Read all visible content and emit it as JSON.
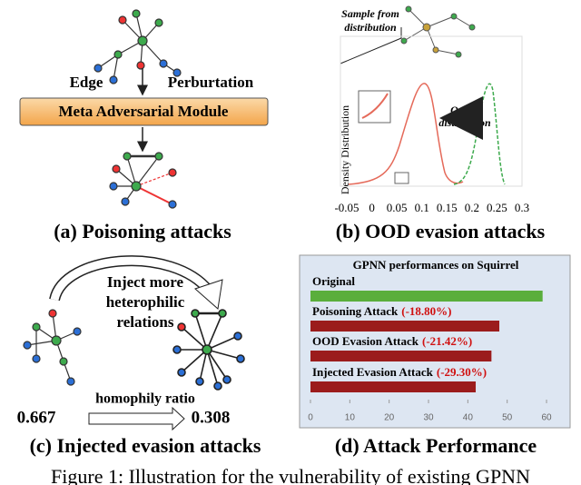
{
  "figure": {
    "a": {
      "edge_label": "Edge",
      "perturbation_label": "Perburtation",
      "module": "Meta Adversarial Module",
      "caption": "(a) Poisoning attacks"
    },
    "b": {
      "sample_note": [
        "Sample from",
        "distribution"
      ],
      "ood_note": [
        "Out of",
        "distribution"
      ],
      "y_label": "Density Distribution",
      "xlim": [
        -0.05,
        0.3
      ],
      "xticks": [
        -0.05,
        0,
        0.05,
        0.1,
        0.15,
        0.2,
        0.25,
        0.3
      ],
      "caption": "(b) OOD evasion attacks"
    },
    "c": {
      "note": [
        "Inject more",
        "heterophilic",
        "relations"
      ],
      "ratio_label": "homophily ratio",
      "ratio_before": 0.667,
      "ratio_after": 0.308,
      "caption": "(c) Injected evasion attacks"
    },
    "d": {
      "caption": "(d) Attack Performance"
    },
    "caption": "Figure 1: Illustration for the vulnerability of existing GPNN"
  },
  "chart_data": {
    "type": "bar",
    "orientation": "horizontal",
    "title": "GPNN performances on Squirrel",
    "categories": [
      "Original",
      "Poisoning Attack",
      "OOD Evasion Attack",
      "Injected Evasion Attack"
    ],
    "values": [
      59,
      48,
      46,
      42
    ],
    "value_labels": [
      null,
      "(-18.80%)",
      "(-21.42%)",
      "(-29.30%)"
    ],
    "colors": [
      "#5aae3c",
      "#9b1c1c",
      "#9b1c1c",
      "#9b1c1c"
    ],
    "label_color": "#d01010",
    "xlim": [
      0,
      62
    ],
    "xticks": [
      0,
      10,
      20,
      30,
      40,
      50,
      60
    ]
  }
}
